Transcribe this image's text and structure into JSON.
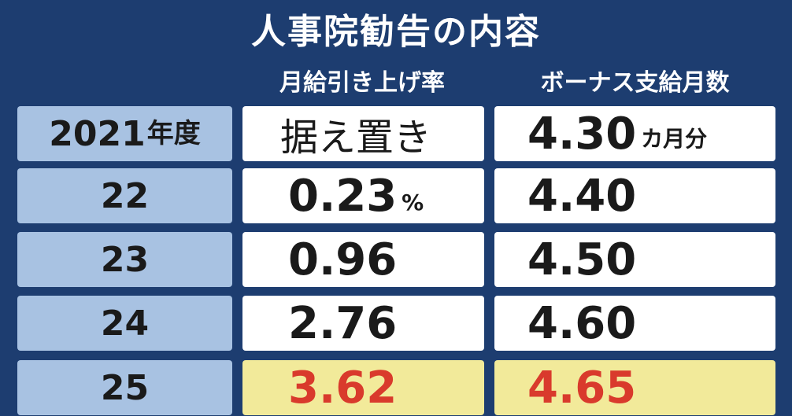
{
  "header": {
    "title": "人事院勧告の内容",
    "columns": [
      "月給引き上げ率",
      "ボーナス支給月数"
    ]
  },
  "table": {
    "rows": [
      {
        "year": {
          "text": "2021",
          "unit": "年度"
        },
        "raise": {
          "text": "据え置き"
        },
        "bonus": {
          "text": "4.30",
          "unit": "カ月分"
        }
      },
      {
        "year": {
          "text": "22"
        },
        "raise": {
          "text": "0.23",
          "unit": "%"
        },
        "bonus": {
          "text": "4.40"
        }
      },
      {
        "year": {
          "text": "23"
        },
        "raise": {
          "text": "0.96"
        },
        "bonus": {
          "text": "4.50"
        }
      },
      {
        "year": {
          "text": "24"
        },
        "raise": {
          "text": "2.76"
        },
        "bonus": {
          "text": "4.60"
        }
      },
      {
        "year": {
          "text": "25"
        },
        "raise": {
          "text": "3.62"
        },
        "bonus": {
          "text": "4.65"
        }
      }
    ]
  }
}
